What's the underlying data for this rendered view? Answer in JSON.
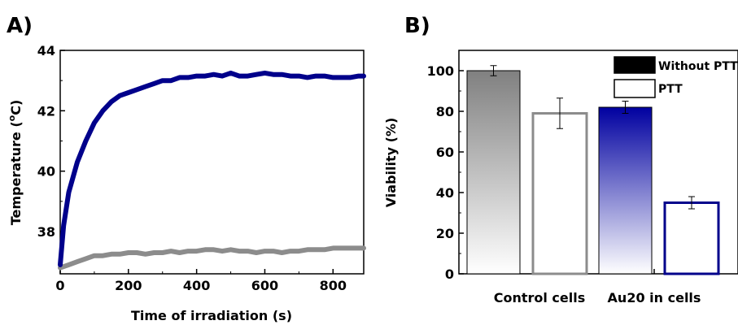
{
  "chart_data": [
    {
      "panel": "A)",
      "type": "line",
      "xlabel": "Time of irradiation (s)",
      "ylabel_main": "Temperature (",
      "ylabel_sup": "o",
      "ylabel_unit": "C)",
      "xlim": [
        0,
        890
      ],
      "ylim": [
        36.6,
        44
      ],
      "xticks": [
        "0",
        "200",
        "400",
        "600",
        "800"
      ],
      "yticks": [
        "38",
        "40",
        "42",
        "44"
      ],
      "series": [
        {
          "color": "#00008b",
          "x": [
            0,
            10,
            25,
            50,
            75,
            100,
            125,
            150,
            175,
            200,
            225,
            250,
            275,
            300,
            325,
            350,
            375,
            400,
            425,
            450,
            475,
            500,
            525,
            550,
            575,
            600,
            625,
            650,
            675,
            700,
            725,
            750,
            775,
            800,
            825,
            850,
            875,
            890
          ],
          "y": [
            36.9,
            38.2,
            39.3,
            40.3,
            41.0,
            41.6,
            42.0,
            42.3,
            42.5,
            42.6,
            42.7,
            42.8,
            42.9,
            43.0,
            43.0,
            43.1,
            43.1,
            43.15,
            43.15,
            43.2,
            43.15,
            43.25,
            43.15,
            43.15,
            43.2,
            43.25,
            43.2,
            43.2,
            43.15,
            43.15,
            43.1,
            43.15,
            43.15,
            43.1,
            43.1,
            43.1,
            43.15,
            43.15
          ]
        },
        {
          "color": "#8c8c8c",
          "x": [
            0,
            25,
            50,
            75,
            100,
            125,
            150,
            175,
            200,
            225,
            250,
            275,
            300,
            325,
            350,
            375,
            400,
            425,
            450,
            475,
            500,
            525,
            550,
            575,
            600,
            625,
            650,
            675,
            700,
            725,
            750,
            775,
            800,
            825,
            850,
            875,
            890
          ],
          "y": [
            36.8,
            36.9,
            37.0,
            37.1,
            37.2,
            37.2,
            37.25,
            37.25,
            37.3,
            37.3,
            37.25,
            37.3,
            37.3,
            37.35,
            37.3,
            37.35,
            37.35,
            37.4,
            37.4,
            37.35,
            37.4,
            37.35,
            37.35,
            37.3,
            37.35,
            37.35,
            37.3,
            37.35,
            37.35,
            37.4,
            37.4,
            37.4,
            37.45,
            37.45,
            37.45,
            37.45,
            37.45
          ]
        }
      ]
    },
    {
      "panel": "B)",
      "type": "bar",
      "ylabel": "Viability (%)",
      "ylim": [
        0,
        110
      ],
      "yticks": [
        "0",
        "20",
        "40",
        "60",
        "80",
        "100"
      ],
      "categories": [
        "Control cells",
        "Au20 in cells"
      ],
      "legend": [
        {
          "label": "Without PTT",
          "fill": "#000000"
        },
        {
          "label": "PTT",
          "fill": "#ffffff"
        }
      ],
      "bars": [
        {
          "category": "Control cells",
          "series": "Without PTT",
          "value": 100,
          "error": 2.5,
          "gradient_top": "#808080",
          "gradient_bottom": "#ffffff",
          "stroke": "#000000"
        },
        {
          "category": "Control cells",
          "series": "PTT",
          "value": 79,
          "error": 7.5,
          "fill": "#ffffff",
          "stroke": "#8c8c8c"
        },
        {
          "category": "Au20 in cells",
          "series": "Without PTT",
          "value": 82,
          "error": 3.0,
          "gradient_top": "#0000a0",
          "gradient_bottom": "#ffffff",
          "stroke": "#000000"
        },
        {
          "category": "Au20 in cells",
          "series": "PTT",
          "value": 35,
          "error": 3.0,
          "fill": "#ffffff",
          "stroke": "#00008b"
        }
      ]
    }
  ]
}
